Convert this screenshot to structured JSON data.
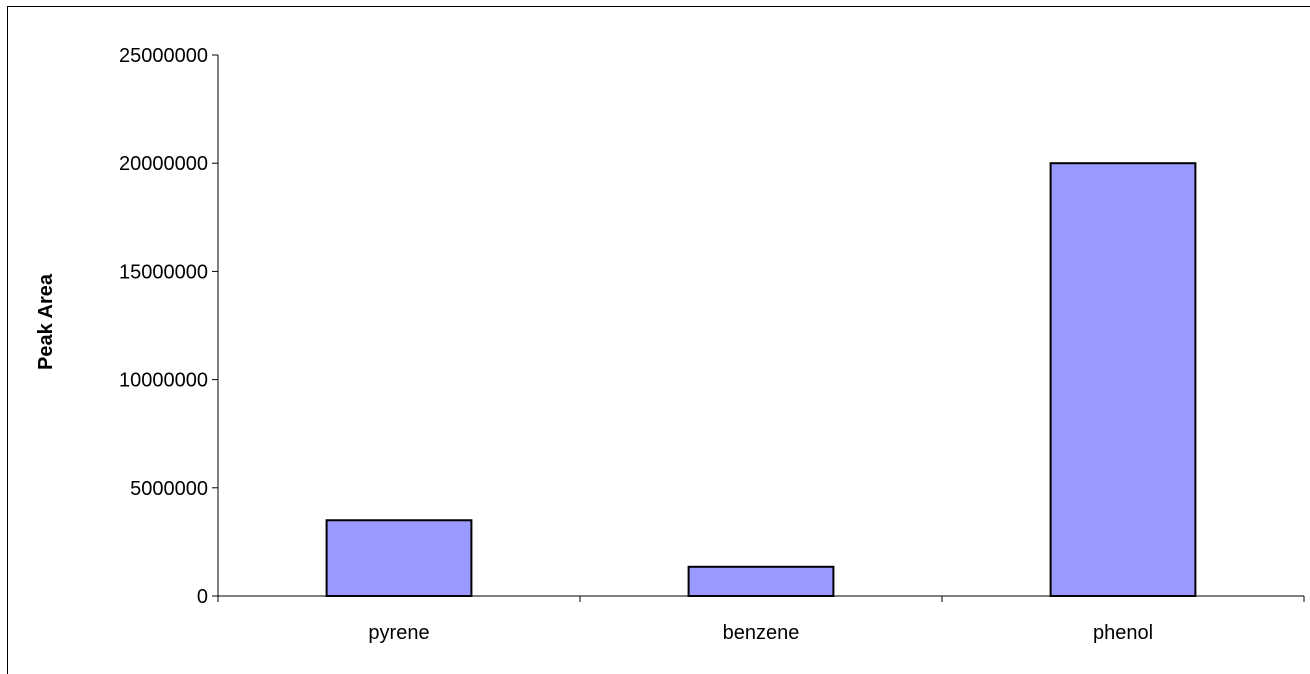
{
  "chart_data": {
    "type": "bar",
    "title": "",
    "xlabel": "",
    "ylabel": "Peak Area",
    "categories": [
      "pyrene",
      "benzene",
      "phenol"
    ],
    "values": [
      3500000,
      1350000,
      20000000
    ],
    "ylim": [
      0,
      25000000
    ],
    "yticks": [
      "0",
      "5000000",
      "10000000",
      "15000000",
      "20000000",
      "25000000"
    ],
    "ytick_values": [
      0,
      5000000,
      10000000,
      15000000,
      20000000,
      25000000
    ],
    "grid": false,
    "legend": "none",
    "bar_color": "#9999ff",
    "bar_edge_color": "#000000"
  }
}
